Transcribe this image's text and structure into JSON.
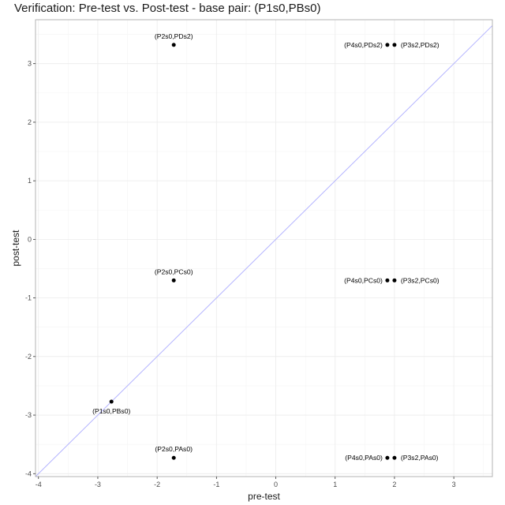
{
  "chart_data": {
    "type": "scatter",
    "title": "Verification: Pre-test vs. Post-test - base pair: (P1s0,PBs0)",
    "xlabel": "pre-test",
    "ylabel": "post-test",
    "xlim": [
      -4.05,
      3.65
    ],
    "ylim": [
      -4.05,
      3.75
    ],
    "x_ticks": [
      -4,
      -3,
      -2,
      -1,
      0,
      1,
      2,
      3
    ],
    "y_ticks": [
      -4,
      -3,
      -2,
      -1,
      0,
      1,
      2,
      3
    ],
    "grid": true,
    "reference_line": "y = x",
    "reference_line_color": "#b3b3ff",
    "point_color": "#000000",
    "points": [
      {
        "label": "(P2s0,PDs2)",
        "x": -1.72,
        "y": 3.32,
        "label_pos": "above"
      },
      {
        "label": "(P4s0,PDs2)",
        "x": 1.88,
        "y": 3.32,
        "label_pos": "left"
      },
      {
        "label": "(P3s2,PDs2)",
        "x": 2.0,
        "y": 3.32,
        "label_pos": "right"
      },
      {
        "label": "(P2s0,PCs0)",
        "x": -1.72,
        "y": -0.7,
        "label_pos": "above"
      },
      {
        "label": "(P4s0,PCs0)",
        "x": 1.88,
        "y": -0.7,
        "label_pos": "left"
      },
      {
        "label": "(P3s2,PCs0)",
        "x": 2.0,
        "y": -0.7,
        "label_pos": "right"
      },
      {
        "label": "(P1s0,PBs0)",
        "x": -2.77,
        "y": -2.77,
        "label_pos": "below"
      },
      {
        "label": "(P2s0,PAs0)",
        "x": -1.72,
        "y": -3.73,
        "label_pos": "above"
      },
      {
        "label": "(P4s0,PAs0)",
        "x": 1.88,
        "y": -3.73,
        "label_pos": "left"
      },
      {
        "label": "(P3s2,PAs0)",
        "x": 2.0,
        "y": -3.73,
        "label_pos": "right"
      }
    ]
  }
}
